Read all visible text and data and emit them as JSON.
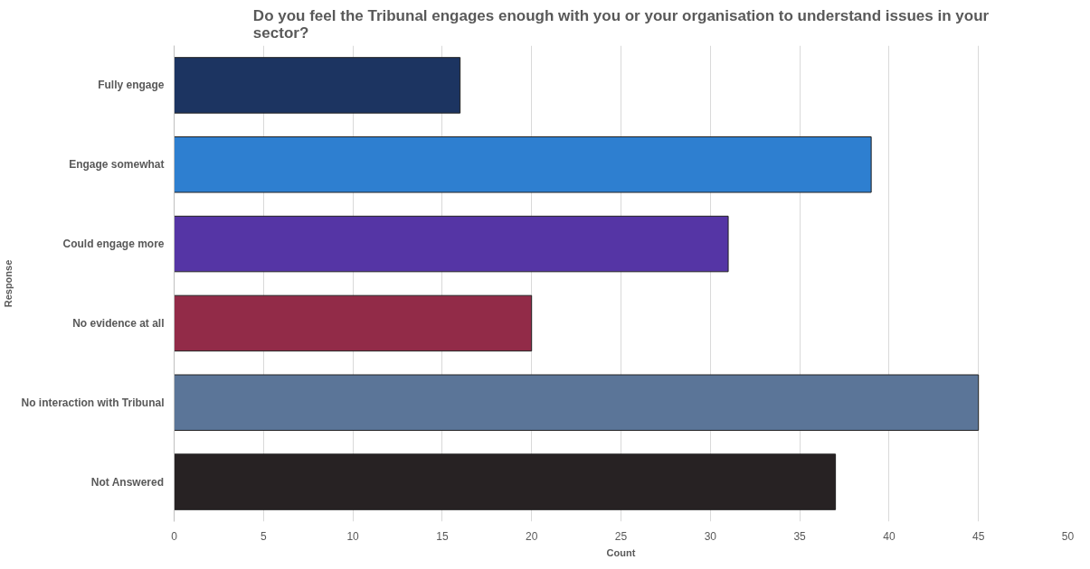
{
  "chart_data": {
    "type": "bar",
    "orientation": "horizontal",
    "title": "Do you feel the Tribunal engages enough with you or your organisation to understand issues in your sector?",
    "xlabel": "Count",
    "ylabel": "Response",
    "categories": [
      "Fully engage",
      "Engage somewhat",
      "Could engage more",
      "No evidence at all",
      "No interaction with Tribunal",
      "Not Answered"
    ],
    "values": [
      16,
      39,
      31,
      20,
      45,
      37
    ],
    "colors": [
      "#1c3461",
      "#2e7fd0",
      "#5535a5",
      "#922b48",
      "#5b7598",
      "#272223"
    ],
    "xlim": [
      0,
      50
    ],
    "xticks": [
      0,
      5,
      10,
      15,
      20,
      25,
      30,
      35,
      40,
      45,
      50
    ],
    "grid": "x"
  }
}
